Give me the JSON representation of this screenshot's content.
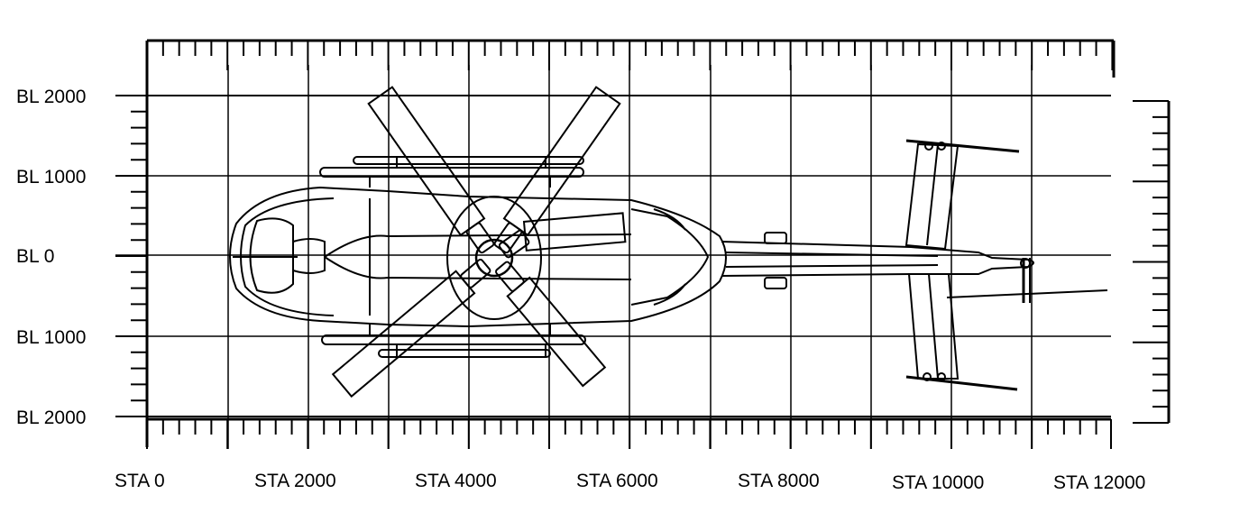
{
  "figure": {
    "axes": {
      "station_labels": [
        "STA 0",
        "STA 2000",
        "STA 4000",
        "STA 6000",
        "STA 8000",
        "STA 10000",
        "STA 12000"
      ],
      "butt_line_labels": [
        "BL 2000",
        "BL 1000",
        "BL 0",
        "BL 1000",
        "BL 2000"
      ]
    },
    "colors": {
      "ink": "#000000",
      "paper": "#ffffff"
    }
  }
}
